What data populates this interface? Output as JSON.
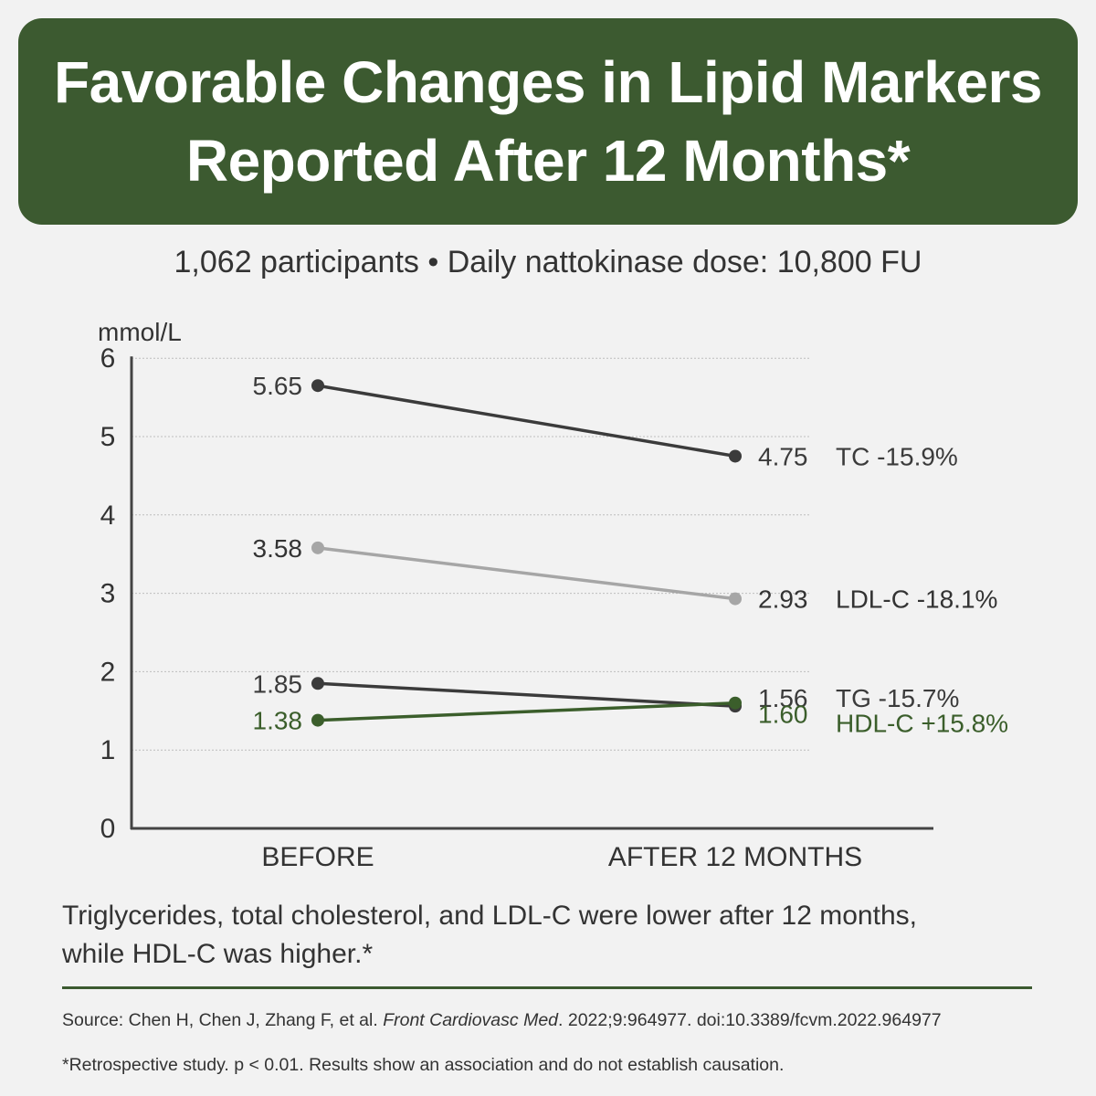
{
  "header": {
    "title_line1": "Favorable Changes in Lipid Markers",
    "title_line2": "Reported After 12 Months*"
  },
  "subtitle": "1,062 participants • Daily nattokinase dose: 10,800 FU",
  "caption": {
    "line1": "Triglycerides, total cholesterol, and LDL-C were lower after 12 months,",
    "line2": "while HDL-C was higher.*"
  },
  "footer": {
    "source_prefix": "Source: Chen H, Chen J, Zhang F, et al.",
    "source_journal": "Front Cardiovasc Med",
    "source_suffix": ". 2022;9:964977. doi:10.3389/fcvm.2022.964977",
    "note": "*Retrospective study. p < 0.01. Results show an association and do not establish causation."
  },
  "colors": {
    "brand_green": "#3c5a30",
    "dark_series": "#3b3b3b",
    "light_series": "#a6a6a6",
    "hdl_green": "#3b5e2b"
  },
  "chart_data": {
    "type": "line",
    "ylabel": "mmol/L",
    "ylim": [
      0,
      6
    ],
    "yticks": [
      0,
      1,
      2,
      3,
      4,
      5,
      6
    ],
    "grid": true,
    "categories": [
      "BEFORE",
      "AFTER 12 MONTHS"
    ],
    "series": [
      {
        "name": "TC -15.9%",
        "values": [
          5.65,
          4.75
        ],
        "labels": [
          "5.65",
          "4.75"
        ],
        "color": "#3b3b3b"
      },
      {
        "name": "LDL-C -18.1%",
        "values": [
          3.58,
          2.93
        ],
        "labels": [
          "3.58",
          "2.93"
        ],
        "color": "#a6a6a6"
      },
      {
        "name": "TG -15.7%",
        "values": [
          1.85,
          1.56
        ],
        "labels": [
          "1.85",
          "1.56"
        ],
        "color": "#3b3b3b"
      },
      {
        "name": "HDL-C +15.8%",
        "values": [
          1.38,
          1.6
        ],
        "labels": [
          "1.38",
          "1.60"
        ],
        "color": "#3b5e2b"
      }
    ]
  }
}
